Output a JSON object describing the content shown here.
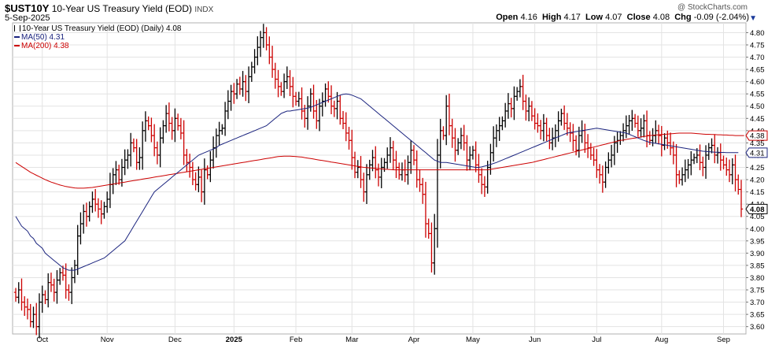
{
  "header": {
    "symbol": "$UST10Y",
    "name": "10-Year US Treasury Yield (EOD)",
    "exchange": "INDX",
    "date": "5-Sep-2025",
    "open_label": "Open",
    "open": "4.16",
    "high_label": "High",
    "high": "4.17",
    "low_label": "Low",
    "low": "4.07",
    "close_label": "Close",
    "close": "4.08",
    "chg_label": "Chg",
    "chg": "-0.09 (-2.04%)"
  },
  "watermark": "@ StockCharts.com",
  "legend": {
    "main": "10-Year US Treasury Yield (EOD) (Daily) 4.08",
    "ma50": "MA(50) 4.31",
    "ma200": "MA(200) 4.38"
  },
  "colors": {
    "up": "#000000",
    "down": "#cc0000",
    "ma50": "#1a237e",
    "ma200": "#cc0000",
    "grid": "#e3e3e3",
    "frame": "#b0b0b0"
  },
  "chart_data": {
    "type": "ohlc",
    "ylim": [
      3.57,
      4.84
    ],
    "yticks": [
      3.6,
      3.65,
      3.7,
      3.75,
      3.8,
      3.85,
      3.9,
      3.95,
      4.0,
      4.05,
      4.1,
      4.15,
      4.2,
      4.25,
      4.3,
      4.35,
      4.4,
      4.45,
      4.5,
      4.55,
      4.6,
      4.65,
      4.7,
      4.75,
      4.8
    ],
    "ytick_labels": [
      "3.60",
      "3.65",
      "3.70",
      "3.75",
      "3.80",
      "3.85",
      "3.90",
      "3.95",
      "4.00",
      "4.05",
      "4.10",
      "4.15",
      "4.20",
      "4.25",
      "4.30",
      "4.35",
      "4.40",
      "4.45",
      "4.50",
      "4.55",
      "4.60",
      "4.65",
      "4.70",
      "4.75",
      "4.80"
    ],
    "xtick_labels": [
      "Oct",
      "Nov",
      "Dec",
      "2025",
      "Feb",
      "Mar",
      "Apr",
      "May",
      "Jun",
      "Jul",
      "Aug",
      "Sep"
    ],
    "xtick_bar_index": [
      9,
      31,
      54,
      74,
      95,
      114,
      135,
      155,
      176,
      197,
      219,
      240
    ],
    "bold_ticks": [
      "2025"
    ],
    "series_labels": {
      "ma200": "4.38",
      "ma50": "4.31",
      "last": "4.08"
    },
    "closes": [
      3.72,
      3.75,
      3.7,
      3.68,
      3.67,
      3.62,
      3.65,
      3.6,
      3.7,
      3.73,
      3.71,
      3.78,
      3.77,
      3.74,
      3.79,
      3.82,
      3.81,
      3.75,
      3.74,
      3.8,
      3.85,
      3.97,
      4.02,
      4.07,
      4.05,
      4.09,
      4.12,
      4.1,
      4.08,
      4.06,
      4.09,
      4.12,
      4.18,
      4.22,
      4.24,
      4.2,
      4.25,
      4.28,
      4.3,
      4.35,
      4.33,
      4.27,
      4.29,
      4.4,
      4.44,
      4.42,
      4.38,
      4.33,
      4.3,
      4.37,
      4.42,
      4.47,
      4.43,
      4.4,
      4.45,
      4.42,
      4.39,
      4.3,
      4.27,
      4.25,
      4.2,
      4.18,
      4.21,
      4.15,
      4.24,
      4.22,
      4.28,
      4.33,
      4.38,
      4.4,
      4.41,
      4.48,
      4.52,
      4.56,
      4.55,
      4.59,
      4.57,
      4.6,
      4.56,
      4.62,
      4.66,
      4.7,
      4.74,
      4.78,
      4.8,
      4.75,
      4.7,
      4.65,
      4.61,
      4.58,
      4.56,
      4.6,
      4.62,
      4.58,
      4.54,
      4.52,
      4.53,
      4.48,
      4.45,
      4.5,
      4.55,
      4.48,
      4.44,
      4.5,
      4.52,
      4.57,
      4.54,
      4.5,
      4.49,
      4.52,
      4.45,
      4.43,
      4.39,
      4.36,
      4.29,
      4.23,
      4.25,
      4.2,
      4.15,
      4.22,
      4.26,
      4.29,
      4.24,
      4.21,
      4.25,
      4.27,
      4.3,
      4.33,
      4.28,
      4.25,
      4.22,
      4.24,
      4.22,
      4.27,
      4.32,
      4.28,
      4.2,
      4.18,
      4.14,
      4.02,
      3.98,
      3.86,
      4.0,
      4.3,
      4.4,
      4.38,
      4.5,
      4.42,
      4.37,
      4.32,
      4.35,
      4.38,
      4.35,
      4.28,
      4.3,
      4.32,
      4.26,
      4.22,
      4.18,
      4.17,
      4.25,
      4.31,
      4.37,
      4.4,
      4.42,
      4.44,
      4.48,
      4.51,
      4.49,
      4.54,
      4.56,
      4.58,
      4.52,
      4.48,
      4.5,
      4.46,
      4.43,
      4.42,
      4.4,
      4.43,
      4.38,
      4.35,
      4.37,
      4.4,
      4.44,
      4.47,
      4.43,
      4.41,
      4.39,
      4.36,
      4.32,
      4.38,
      4.4,
      4.35,
      4.33,
      4.3,
      4.28,
      4.24,
      4.22,
      4.19,
      4.25,
      4.28,
      4.3,
      4.35,
      4.36,
      4.38,
      4.4,
      4.42,
      4.44,
      4.45,
      4.43,
      4.4,
      4.41,
      4.44,
      4.38,
      4.36,
      4.38,
      4.4,
      4.38,
      4.34,
      4.37,
      4.35,
      4.33,
      4.3,
      4.22,
      4.2,
      4.22,
      4.24,
      4.26,
      4.28,
      4.29,
      4.3,
      4.27,
      4.25,
      4.3,
      4.33,
      4.34,
      4.3,
      4.31,
      4.28,
      4.26,
      4.24,
      4.22,
      4.26,
      4.2,
      4.16,
      4.08
    ],
    "ma50": [
      4.05,
      4.03,
      4.01,
      4.0,
      3.99,
      3.97,
      3.96,
      3.94,
      3.93,
      3.92,
      3.9,
      3.89,
      3.88,
      3.87,
      3.86,
      3.85,
      3.84,
      3.835,
      3.83,
      3.83,
      3.83,
      3.835,
      3.84,
      3.845,
      3.85,
      3.855,
      3.86,
      3.865,
      3.87,
      3.875,
      3.88,
      3.89,
      3.9,
      3.91,
      3.92,
      3.93,
      3.94,
      3.95,
      3.97,
      3.99,
      4.01,
      4.03,
      4.05,
      4.07,
      4.09,
      4.11,
      4.13,
      4.15,
      4.16,
      4.17,
      4.18,
      4.19,
      4.2,
      4.21,
      4.22,
      4.23,
      4.24,
      4.25,
      4.26,
      4.27,
      4.28,
      4.29,
      4.3,
      4.305,
      4.31,
      4.315,
      4.32,
      4.325,
      4.33,
      4.34,
      4.345,
      4.35,
      4.355,
      4.36,
      4.365,
      4.37,
      4.375,
      4.38,
      4.385,
      4.39,
      4.395,
      4.4,
      4.405,
      4.41,
      4.415,
      4.42,
      4.43,
      4.44,
      4.45,
      4.46,
      4.47,
      4.475,
      4.48,
      4.48,
      4.482,
      4.484,
      4.486,
      4.488,
      4.49,
      4.492,
      4.495,
      4.5,
      4.505,
      4.51,
      4.515,
      4.52,
      4.525,
      4.53,
      4.535,
      4.54,
      4.545,
      4.548,
      4.55,
      4.548,
      4.545,
      4.54,
      4.535,
      4.53,
      4.52,
      4.51,
      4.5,
      4.49,
      4.48,
      4.47,
      4.46,
      4.45,
      4.44,
      4.43,
      4.42,
      4.41,
      4.4,
      4.39,
      4.38,
      4.37,
      4.36,
      4.35,
      4.34,
      4.33,
      4.32,
      4.31,
      4.3,
      4.29,
      4.28,
      4.275,
      4.27,
      4.27,
      4.27,
      4.268,
      4.266,
      4.264,
      4.262,
      4.26,
      4.258,
      4.256,
      4.254,
      4.252,
      4.25,
      4.25,
      4.252,
      4.255,
      4.258,
      4.262,
      4.266,
      4.27,
      4.275,
      4.28,
      4.285,
      4.29,
      4.295,
      4.3,
      4.305,
      4.31,
      4.315,
      4.32,
      4.325,
      4.33,
      4.335,
      4.34,
      4.345,
      4.35,
      4.355,
      4.36,
      4.365,
      4.37,
      4.375,
      4.38,
      4.385,
      4.39,
      4.392,
      4.394,
      4.396,
      4.398,
      4.4,
      4.402,
      4.404,
      4.406,
      4.408,
      4.41,
      4.408,
      4.406,
      4.404,
      4.402,
      4.4,
      4.398,
      4.396,
      4.394,
      4.392,
      4.39,
      4.385,
      4.38,
      4.375,
      4.37,
      4.365,
      4.36,
      4.356,
      4.352,
      4.35,
      4.348,
      4.346,
      4.344,
      4.342,
      4.34,
      4.338,
      4.336,
      4.334,
      4.332,
      4.33,
      4.328,
      4.326,
      4.324,
      4.322,
      4.32,
      4.318,
      4.316,
      4.315,
      4.314,
      4.313,
      4.312,
      4.312,
      4.311,
      4.311,
      4.31,
      4.31,
      4.31,
      4.31,
      4.31
    ],
    "ma200": [
      4.27,
      4.262,
      4.254,
      4.246,
      4.238,
      4.23,
      4.224,
      4.218,
      4.212,
      4.206,
      4.2,
      4.195,
      4.19,
      4.186,
      4.182,
      4.178,
      4.175,
      4.172,
      4.17,
      4.168,
      4.166,
      4.165,
      4.165,
      4.165,
      4.166,
      4.167,
      4.168,
      4.17,
      4.172,
      4.174,
      4.176,
      4.178,
      4.18,
      4.182,
      4.184,
      4.186,
      4.188,
      4.19,
      4.192,
      4.194,
      4.196,
      4.198,
      4.2,
      4.202,
      4.204,
      4.206,
      4.208,
      4.21,
      4.212,
      4.214,
      4.216,
      4.218,
      4.22,
      4.222,
      4.224,
      4.226,
      4.228,
      4.23,
      4.232,
      4.234,
      4.236,
      4.238,
      4.24,
      4.242,
      4.244,
      4.246,
      4.248,
      4.25,
      4.252,
      4.254,
      4.256,
      4.258,
      4.26,
      4.262,
      4.264,
      4.266,
      4.268,
      4.27,
      4.272,
      4.274,
      4.276,
      4.278,
      4.28,
      4.282,
      4.284,
      4.286,
      4.288,
      4.29,
      4.292,
      4.294,
      4.295,
      4.296,
      4.296,
      4.296,
      4.295,
      4.294,
      4.293,
      4.292,
      4.29,
      4.288,
      4.286,
      4.284,
      4.282,
      4.28,
      4.278,
      4.276,
      4.274,
      4.272,
      4.27,
      4.268,
      4.266,
      4.264,
      4.262,
      4.26,
      4.258,
      4.256,
      4.254,
      4.252,
      4.25,
      4.249,
      4.248,
      4.247,
      4.246,
      4.245,
      4.244,
      4.243,
      4.242,
      4.241,
      4.24,
      4.24,
      4.24,
      4.24,
      4.24,
      4.24,
      4.24,
      4.24,
      4.24,
      4.24,
      4.24,
      4.24,
      4.24,
      4.24,
      4.24,
      4.24,
      4.24,
      4.24,
      4.24,
      4.24,
      4.24,
      4.24,
      4.24,
      4.24,
      4.24,
      4.24,
      4.24,
      4.24,
      4.24,
      4.24,
      4.24,
      4.24,
      4.24,
      4.242,
      4.244,
      4.246,
      4.248,
      4.25,
      4.252,
      4.254,
      4.256,
      4.258,
      4.26,
      4.262,
      4.264,
      4.266,
      4.268,
      4.27,
      4.273,
      4.276,
      4.279,
      4.282,
      4.285,
      4.288,
      4.291,
      4.294,
      4.297,
      4.3,
      4.303,
      4.306,
      4.309,
      4.312,
      4.315,
      4.318,
      4.321,
      4.324,
      4.327,
      4.33,
      4.333,
      4.336,
      4.339,
      4.342,
      4.345,
      4.348,
      4.351,
      4.354,
      4.357,
      4.36,
      4.362,
      4.364,
      4.366,
      4.368,
      4.37,
      4.372,
      4.374,
      4.376,
      4.378,
      4.38,
      4.381,
      4.382,
      4.383,
      4.384,
      4.385,
      4.386,
      4.387,
      4.388,
      4.389,
      4.39,
      4.39,
      4.39,
      4.39,
      4.39,
      4.389,
      4.388,
      4.387,
      4.386,
      4.385,
      4.385,
      4.384,
      4.384,
      4.383,
      4.383,
      4.382,
      4.382,
      4.381,
      4.381,
      4.38,
      4.38,
      4.38,
      4.38
    ]
  }
}
